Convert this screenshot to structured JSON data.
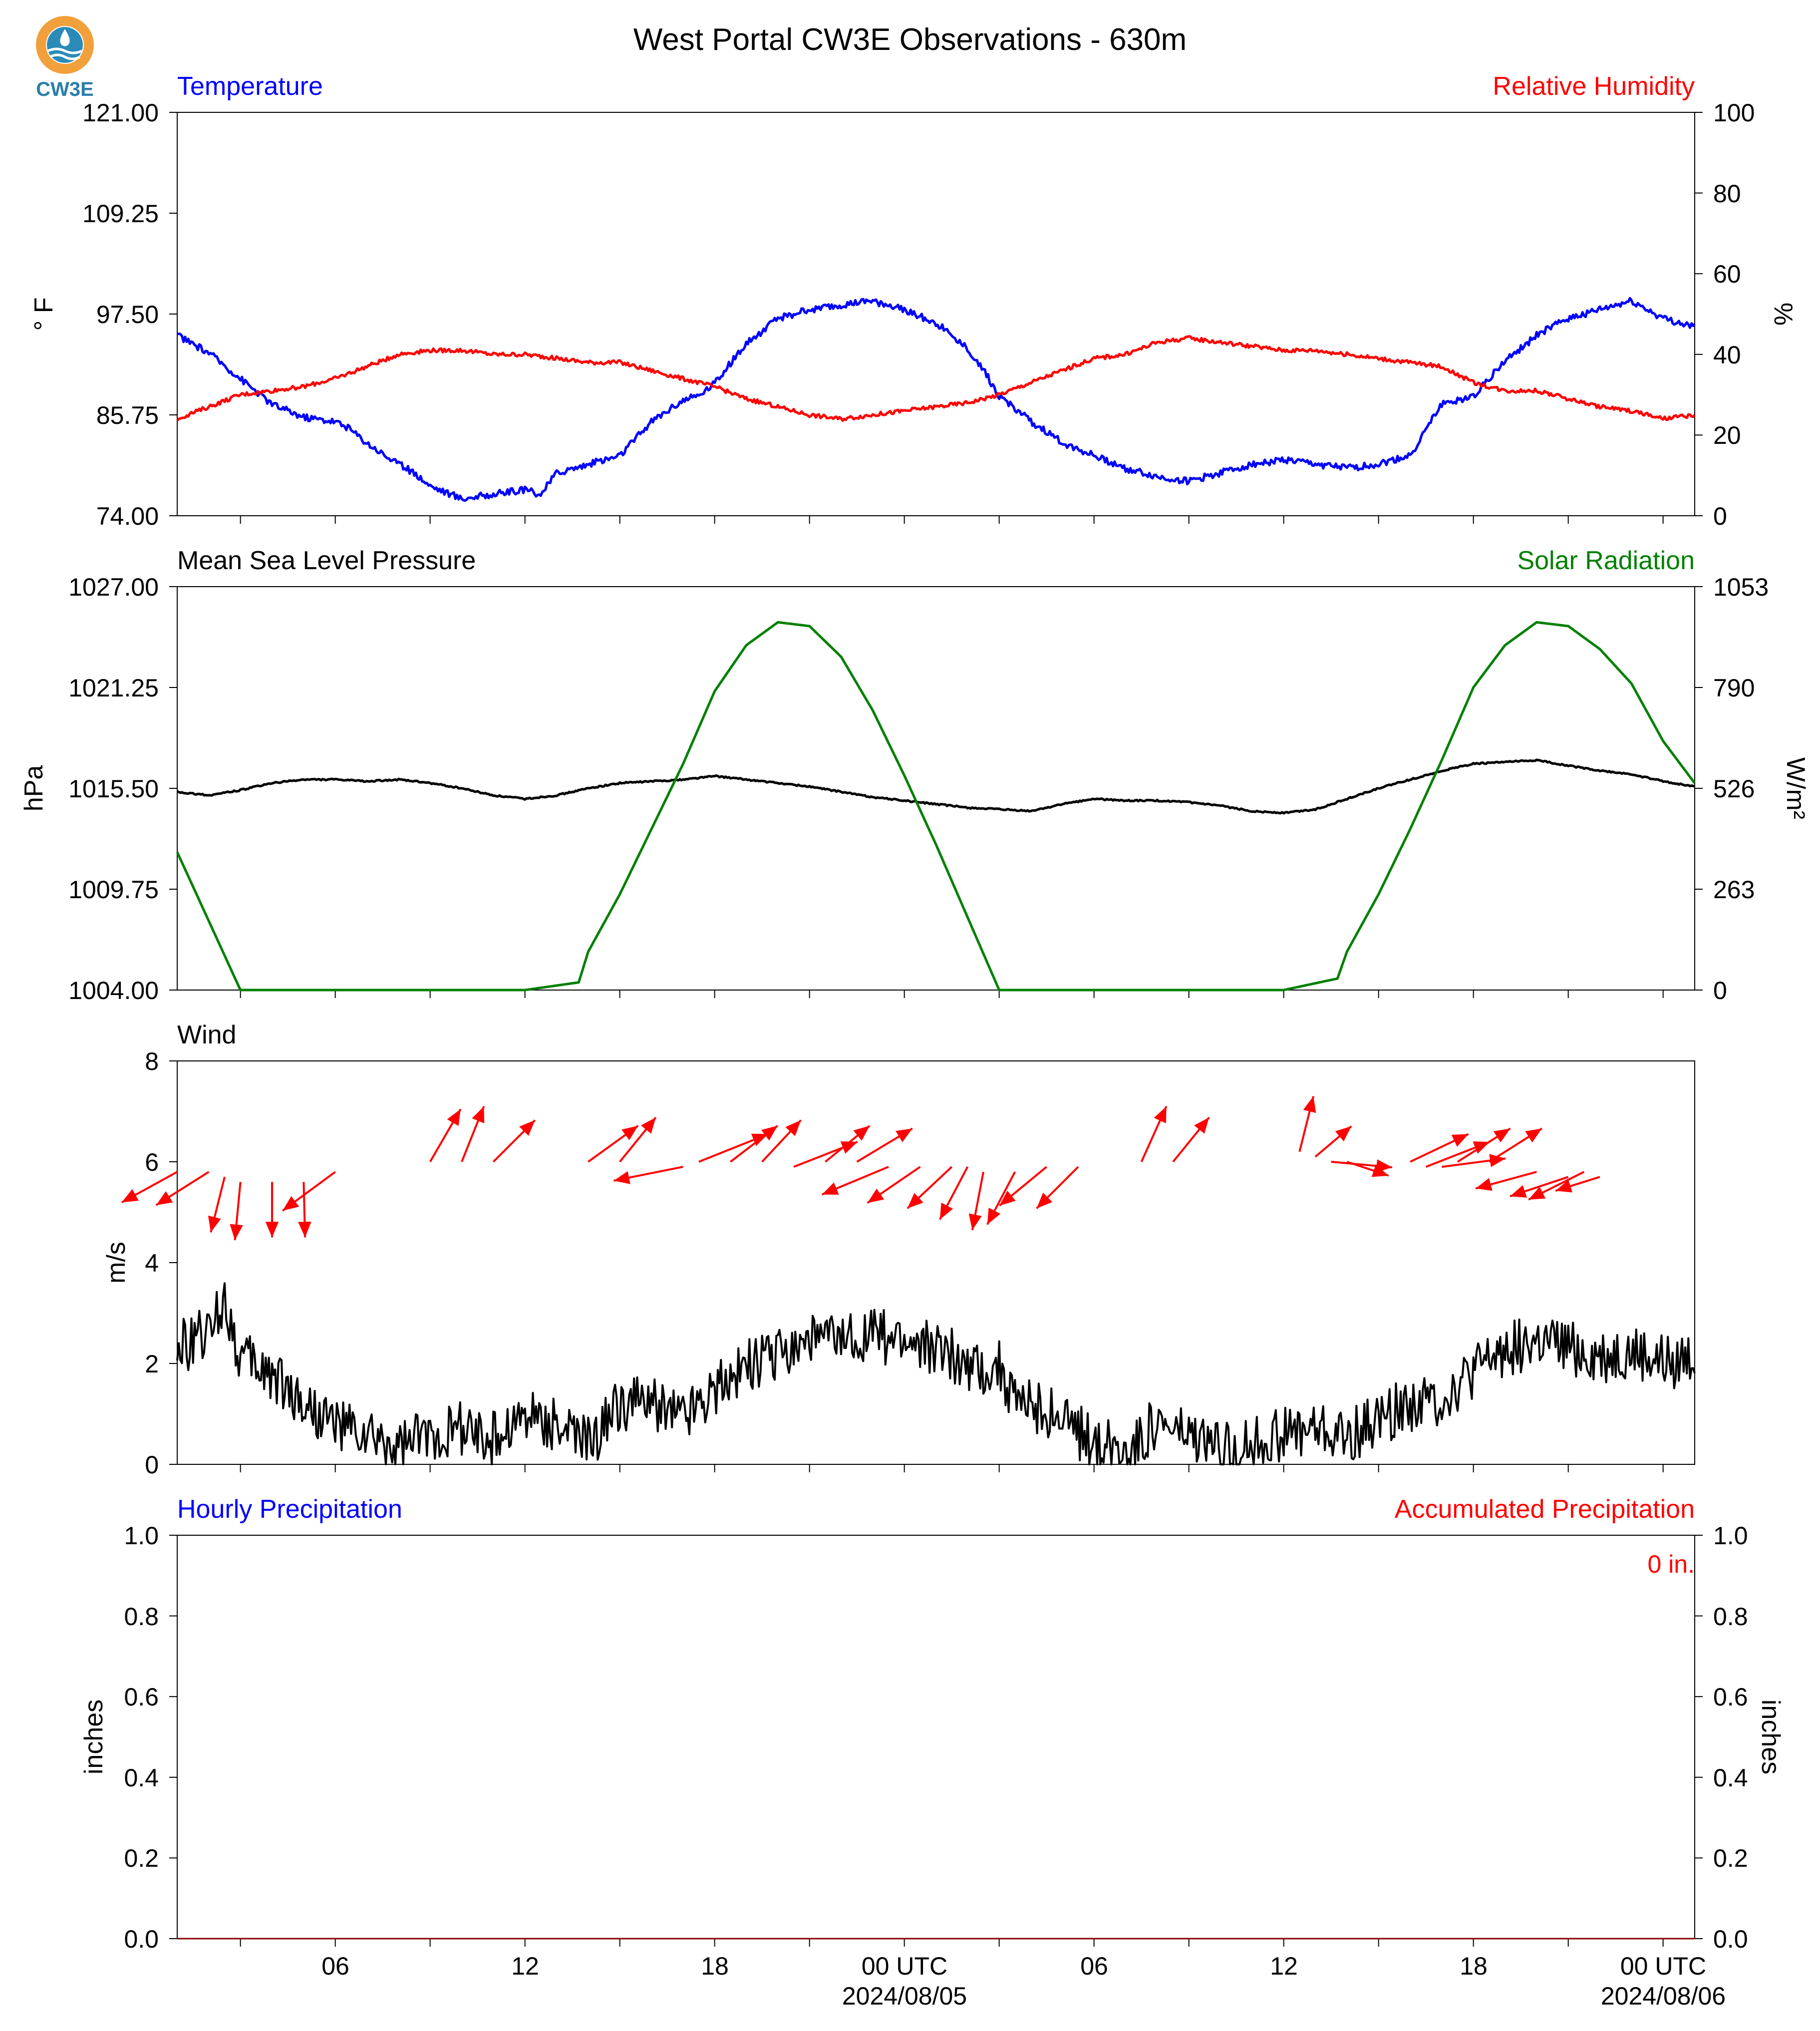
{
  "title": "West Portal CW3E Observations - 630m",
  "logo": {
    "text": "CW3E",
    "colors": {
      "ring": "#f2a03c",
      "wave": "#2a8bb8",
      "text": "#2a7fa8"
    }
  },
  "colors": {
    "blue": "#0000ff",
    "red": "#ff0000",
    "green": "#008000",
    "black": "#000000"
  },
  "x_axis": {
    "tick_labels": [
      "06",
      "12",
      "18",
      "00 UTC",
      "06",
      "12",
      "18",
      "00 UTC"
    ],
    "tick_hours": [
      6,
      12,
      18,
      24,
      30,
      36,
      42,
      48
    ],
    "date_labels": [
      "2024/08/05",
      "2024/08/06"
    ],
    "range_hours": [
      1,
      49
    ]
  },
  "panels": {
    "temperature": {
      "left_title": "Temperature",
      "right_title": "Relative Humidity",
      "left_ylabel": "° F",
      "right_ylabel": "%",
      "left_ticks": [
        "121.00",
        "109.25",
        "97.50",
        "85.75",
        "74.00"
      ],
      "right_ticks": [
        "100",
        "80",
        "60",
        "40",
        "20",
        "0"
      ]
    },
    "pressure": {
      "left_title": "Mean Sea Level Pressure",
      "right_title": "Solar Radiation",
      "left_ylabel": "hPa",
      "right_ylabel": "W/m²",
      "left_ticks": [
        "1027.00",
        "1021.25",
        "1015.50",
        "1009.75",
        "1004.00"
      ],
      "right_ticks": [
        "1053",
        "790",
        "526",
        "263",
        "0"
      ]
    },
    "wind": {
      "left_title": "Wind",
      "left_ylabel": "m/s",
      "left_ticks": [
        "8",
        "6",
        "4",
        "2",
        "0"
      ]
    },
    "precip": {
      "left_title": "Hourly Precipitation",
      "right_title": "Accumulated Precipitation",
      "left_ylabel": "inches",
      "right_ylabel": "inches",
      "left_ticks": [
        "1.0",
        "0.8",
        "0.6",
        "0.4",
        "0.2",
        "0.0"
      ],
      "right_ticks": [
        "1.0",
        "0.8",
        "0.6",
        "0.4",
        "0.2",
        "0.0"
      ],
      "total_label": "0 in."
    }
  },
  "chart_data": [
    {
      "type": "line",
      "title": "Temperature / Relative Humidity",
      "x_unit": "hours since 2024/08/04 00 UTC",
      "ylim_left": [
        74,
        121
      ],
      "ylim_right": [
        0,
        100
      ],
      "series": [
        {
          "name": "Temperature",
          "axis": "left",
          "unit": "°F",
          "x": [
            1,
            2,
            3,
            3.5,
            4,
            5,
            6,
            6.5,
            7,
            8,
            8.5,
            9,
            10,
            11,
            12,
            12.5,
            13,
            14,
            15,
            16,
            17,
            17.5,
            18,
            19,
            20,
            21,
            22,
            23,
            24,
            25,
            26,
            26.5,
            27,
            28,
            29,
            30,
            31,
            32,
            33,
            34,
            35,
            36,
            37,
            38,
            39,
            40,
            40.5,
            41,
            42,
            43,
            44,
            45,
            46,
            47,
            48,
            49
          ],
          "values": [
            95,
            93,
            90,
            88.5,
            87,
            85.5,
            85,
            84,
            82.5,
            80,
            79,
            77.5,
            76,
            76.5,
            77,
            76.5,
            79,
            80,
            81,
            85,
            87.5,
            88,
            89.5,
            94,
            97,
            98,
            98.5,
            99,
            98,
            96.5,
            93.5,
            91,
            88,
            85,
            82.5,
            81,
            79.5,
            78.5,
            78,
            79,
            80,
            80.5,
            80,
            79.5,
            80,
            81,
            84,
            87,
            88,
            92,
            95,
            97,
            98,
            99,
            97,
            96
          ]
        },
        {
          "name": "Relative Humidity",
          "axis": "right",
          "unit": "%",
          "x": [
            1,
            2,
            3,
            4,
            5,
            6,
            7,
            8,
            9,
            10,
            11,
            12,
            13,
            14,
            15,
            16,
            17,
            18,
            19,
            20,
            21,
            22,
            23,
            24,
            25,
            26,
            27,
            28,
            29,
            30,
            31,
            32,
            33,
            34,
            35,
            36,
            37,
            38,
            39,
            40,
            41,
            42,
            43,
            44,
            45,
            46,
            47,
            48,
            49
          ],
          "values": [
            24,
            27,
            30,
            31,
            32,
            34,
            37,
            40,
            41,
            41,
            40,
            40,
            39,
            38,
            38,
            36,
            34,
            32,
            29,
            27,
            25,
            24,
            25,
            26,
            27,
            28,
            30,
            33,
            36,
            39,
            40,
            43,
            44,
            43,
            42,
            41,
            41,
            40,
            39,
            38,
            37,
            33,
            31,
            31,
            29,
            27,
            26,
            24,
            25
          ]
        }
      ]
    },
    {
      "type": "line",
      "title": "Mean Sea Level Pressure / Solar Radiation",
      "x_unit": "hours since 2024/08/04 00 UTC",
      "ylim_left": [
        1004,
        1027
      ],
      "ylim_right": [
        0,
        1053
      ],
      "series": [
        {
          "name": "Mean Sea Level Pressure",
          "axis": "left",
          "unit": "hPa",
          "x": [
            1,
            2,
            3,
            4,
            5,
            6,
            7,
            8,
            9,
            10,
            11,
            12,
            13,
            14,
            15,
            16,
            17,
            18,
            19,
            20,
            21,
            22,
            23,
            24,
            25,
            26,
            27,
            28,
            29,
            30,
            31,
            32,
            33,
            34,
            35,
            36,
            37,
            38,
            39,
            40,
            41,
            42,
            43,
            44,
            45,
            46,
            47,
            48,
            49
          ],
          "values": [
            1015.3,
            1015.1,
            1015.4,
            1015.8,
            1016,
            1016,
            1015.9,
            1016,
            1015.8,
            1015.5,
            1015.1,
            1014.9,
            1015.1,
            1015.5,
            1015.8,
            1015.9,
            1016,
            1016.2,
            1016,
            1015.8,
            1015.6,
            1015.3,
            1015.0,
            1014.8,
            1014.6,
            1014.4,
            1014.3,
            1014.2,
            1014.6,
            1014.9,
            1014.8,
            1014.8,
            1014.7,
            1014.5,
            1014.2,
            1014.1,
            1014.3,
            1014.9,
            1015.5,
            1016.0,
            1016.5,
            1016.9,
            1017.0,
            1017.1,
            1016.8,
            1016.5,
            1016.3,
            1015.9,
            1015.6
          ]
        },
        {
          "name": "Solar Radiation",
          "axis": "right",
          "unit": "W/m²",
          "x": [
            1,
            2,
            3,
            6,
            12,
            13.7,
            14,
            15,
            16,
            17,
            18,
            19,
            20,
            21,
            22,
            23,
            24,
            25,
            26,
            27,
            30,
            36,
            37.7,
            38,
            39,
            40,
            41,
            42,
            43,
            44,
            45,
            46,
            47,
            48,
            49
          ],
          "values": [
            360,
            180,
            0,
            0,
            0,
            20,
            100,
            250,
            420,
            590,
            780,
            900,
            960,
            950,
            870,
            730,
            560,
            380,
            190,
            0,
            0,
            0,
            30,
            100,
            250,
            420,
            600,
            790,
            900,
            960,
            950,
            890,
            800,
            650,
            540
          ]
        }
      ]
    },
    {
      "type": "line",
      "title": "Wind",
      "x_unit": "hours since 2024/08/04 00 UTC",
      "ylim": [
        0,
        8
      ],
      "series": [
        {
          "name": "Wind",
          "unit": "m/s",
          "x": [
            1,
            2,
            2.5,
            3,
            4,
            5,
            6,
            7,
            8,
            9,
            10,
            11,
            12,
            13,
            14,
            15,
            16,
            17,
            18,
            19,
            20,
            21,
            22,
            23,
            24,
            25,
            26,
            27,
            27.5,
            28,
            29,
            30,
            31,
            32,
            33,
            34,
            35,
            36,
            37,
            38,
            39,
            40,
            41,
            42,
            43,
            44,
            45,
            46,
            47,
            48,
            49
          ],
          "values": [
            2.3,
            2.6,
            3.3,
            2.1,
            1.8,
            1.2,
            0.8,
            0.5,
            0.3,
            0.6,
            0.7,
            0.5,
            1.0,
            0.8,
            0.4,
            1.2,
            1.2,
            1.0,
            1.5,
            2.0,
            2.2,
            2.5,
            2.4,
            2.6,
            2.4,
            2.3,
            2.0,
            1.9,
            1.2,
            1.2,
            0.9,
            0.4,
            0.3,
            0.8,
            0.5,
            0.3,
            0.4,
            0.6,
            0.7,
            0.5,
            0.9,
            1.2,
            1.3,
            1.8,
            2.3,
            2.4,
            2.3,
            2.1,
            2.2,
            2.0,
            2.1
          ]
        }
      ],
      "barbs_note": "wind direction arrows",
      "arrows": [
        {
          "x": 1,
          "ybase": 5.8,
          "dx": -2,
          "dy": -1.1
        },
        {
          "x": 2,
          "ybase": 5.8,
          "dx": -1.9,
          "dy": -1.2
        },
        {
          "x": 2.5,
          "ybase": 5.7,
          "dx": -0.5,
          "dy": -2.0
        },
        {
          "x": 3,
          "ybase": 5.6,
          "dx": -0.2,
          "dy": -2.1
        },
        {
          "x": 4,
          "ybase": 5.6,
          "dx": 0,
          "dy": -2.0
        },
        {
          "x": 5,
          "ybase": 5.6,
          "dx": 0.05,
          "dy": -2.0
        },
        {
          "x": 6,
          "ybase": 5.8,
          "dx": -1.9,
          "dy": -1.4
        },
        {
          "x": 9,
          "ybase": 6.0,
          "dx": 1.1,
          "dy": 1.9
        },
        {
          "x": 10,
          "ybase": 6.0,
          "dx": 0.8,
          "dy": 2.0
        },
        {
          "x": 11,
          "ybase": 6.0,
          "dx": 1.5,
          "dy": 1.5
        },
        {
          "x": 14,
          "ybase": 6.0,
          "dx": 1.8,
          "dy": 1.3
        },
        {
          "x": 15,
          "ybase": 6.0,
          "dx": 1.3,
          "dy": 1.6
        },
        {
          "x": 17,
          "ybase": 5.9,
          "dx": -2.5,
          "dy": -0.5
        },
        {
          "x": 17.5,
          "ybase": 6.0,
          "dx": 2.5,
          "dy": 1.0
        },
        {
          "x": 18.5,
          "ybase": 6.0,
          "dx": 1.7,
          "dy": 1.3
        },
        {
          "x": 19.5,
          "ybase": 6.0,
          "dx": 1.4,
          "dy": 1.5
        },
        {
          "x": 20.5,
          "ybase": 5.9,
          "dx": 2.3,
          "dy": 0.9
        },
        {
          "x": 21.5,
          "ybase": 6.0,
          "dx": 1.6,
          "dy": 1.3
        },
        {
          "x": 22.5,
          "ybase": 6.0,
          "dx": 2.0,
          "dy": 1.2
        },
        {
          "x": 23.5,
          "ybase": 5.9,
          "dx": -2.4,
          "dy": -1.0
        },
        {
          "x": 24.5,
          "ybase": 5.9,
          "dx": -1.9,
          "dy": -1.3
        },
        {
          "x": 25.5,
          "ybase": 5.9,
          "dx": -1.6,
          "dy": -1.5
        },
        {
          "x": 26,
          "ybase": 5.9,
          "dx": -1.0,
          "dy": -1.9
        },
        {
          "x": 26.5,
          "ybase": 5.8,
          "dx": -0.4,
          "dy": -2.1
        },
        {
          "x": 27.5,
          "ybase": 5.8,
          "dx": -1.0,
          "dy": -1.9
        },
        {
          "x": 28.5,
          "ybase": 5.9,
          "dx": -1.7,
          "dy": -1.4
        },
        {
          "x": 29.5,
          "ybase": 5.9,
          "dx": -1.5,
          "dy": -1.5
        },
        {
          "x": 31.5,
          "ybase": 6.0,
          "dx": 0.9,
          "dy": 2.0
        },
        {
          "x": 32.5,
          "ybase": 6.0,
          "dx": 1.3,
          "dy": 1.6
        },
        {
          "x": 36.5,
          "ybase": 6.2,
          "dx": 0.5,
          "dy": 2.0
        },
        {
          "x": 37,
          "ybase": 6.1,
          "dx": 1.3,
          "dy": 1.1
        },
        {
          "x": 37.5,
          "ybase": 6.0,
          "dx": 2.2,
          "dy": -0.2
        },
        {
          "x": 38,
          "ybase": 6.0,
          "dx": 1.5,
          "dy": -0.5
        },
        {
          "x": 40,
          "ybase": 6.0,
          "dx": 2.1,
          "dy": 1.0
        },
        {
          "x": 40.5,
          "ybase": 5.9,
          "dx": 2.3,
          "dy": 0.9
        },
        {
          "x": 41,
          "ybase": 5.9,
          "dx": 2.3,
          "dy": 0.3
        },
        {
          "x": 41.5,
          "ybase": 6.0,
          "dx": 1.9,
          "dy": 1.2
        },
        {
          "x": 42.5,
          "ybase": 6.0,
          "dx": 1.9,
          "dy": 1.2
        },
        {
          "x": 44,
          "ybase": 5.8,
          "dx": -2.2,
          "dy": -0.6
        },
        {
          "x": 45,
          "ybase": 5.7,
          "dx": -2.1,
          "dy": -0.7
        },
        {
          "x": 45.5,
          "ybase": 5.8,
          "dx": -2.0,
          "dy": -1.0
        },
        {
          "x": 46,
          "ybase": 5.7,
          "dx": -1.6,
          "dy": -0.5
        }
      ]
    },
    {
      "type": "line",
      "title": "Hourly Precipitation / Accumulated Precipitation",
      "x_unit": "hours since 2024/08/04 00 UTC",
      "ylim_left": [
        0,
        1
      ],
      "ylim_right": [
        0,
        1
      ],
      "series": [
        {
          "name": "Hourly Precipitation",
          "axis": "left",
          "unit": "inches",
          "x": [
            1,
            49
          ],
          "values": [
            0,
            0
          ]
        },
        {
          "name": "Accumulated Precipitation",
          "axis": "right",
          "unit": "inches",
          "x": [
            1,
            49
          ],
          "values": [
            0,
            0
          ]
        }
      ]
    }
  ]
}
